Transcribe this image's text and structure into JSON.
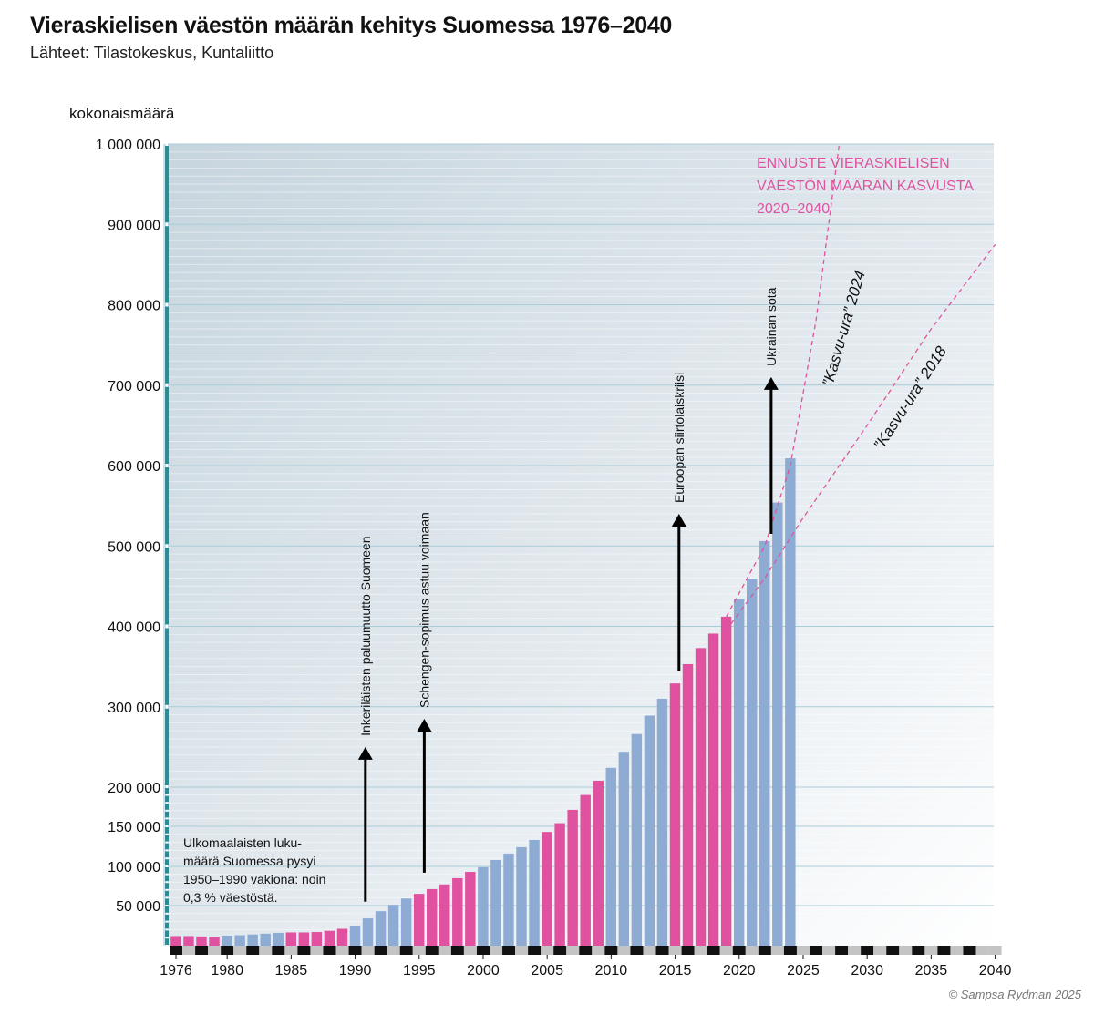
{
  "header": {
    "title": "Vieraskielisen väestön määrän kehitys Suomessa 1976–2040",
    "subtitle": "Lähteet: Tilastokeskus, Kuntaliitto"
  },
  "credit": "© Sampsa Rydman 2025",
  "colors": {
    "pink": "#e0529f",
    "blue": "#8eacd3",
    "teal": "#2a8c95",
    "grid": "#a8cdd8"
  },
  "chart_data": {
    "type": "bar",
    "ylabel": "kokonaismäärä",
    "y_ticks": [
      {
        "value": 50000,
        "label": "50 000"
      },
      {
        "value": 100000,
        "label": "100 000"
      },
      {
        "value": 150000,
        "label": "150 000"
      },
      {
        "value": 200000,
        "label": "200 000"
      },
      {
        "value": 300000,
        "label": "300 000"
      },
      {
        "value": 400000,
        "label": "400 000"
      },
      {
        "value": 500000,
        "label": "500 000"
      },
      {
        "value": 600000,
        "label": "600 000"
      },
      {
        "value": 700000,
        "label": "700 000"
      },
      {
        "value": 800000,
        "label": "800 000"
      },
      {
        "value": 900000,
        "label": "900 000"
      },
      {
        "value": 1000000,
        "label": "1 000 000"
      }
    ],
    "x_ticks": [
      {
        "value": 1976,
        "label": "1976"
      },
      {
        "value": 1980,
        "label": "1980"
      },
      {
        "value": 1985,
        "label": "1985"
      },
      {
        "value": 1990,
        "label": "1990"
      },
      {
        "value": 1995,
        "label": "1995"
      },
      {
        "value": 2000,
        "label": "2000"
      },
      {
        "value": 2005,
        "label": "2005"
      },
      {
        "value": 2010,
        "label": "2010"
      },
      {
        "value": 2015,
        "label": "2015"
      },
      {
        "value": 2020,
        "label": "2020"
      },
      {
        "value": 2025,
        "label": "2025"
      },
      {
        "value": 2030,
        "label": "2030"
      },
      {
        "value": 2035,
        "label": "2035"
      },
      {
        "value": 2040,
        "label": "2040"
      }
    ],
    "xlim": [
      1976,
      2040
    ],
    "ylim": [
      0,
      1000000
    ],
    "bars": [
      {
        "year": 1976,
        "value": 12000,
        "color": "pink"
      },
      {
        "year": 1977,
        "value": 12000,
        "color": "pink"
      },
      {
        "year": 1978,
        "value": 11500,
        "color": "pink"
      },
      {
        "year": 1979,
        "value": 11000,
        "color": "pink"
      },
      {
        "year": 1980,
        "value": 12500,
        "color": "blue"
      },
      {
        "year": 1981,
        "value": 13000,
        "color": "blue"
      },
      {
        "year": 1982,
        "value": 14000,
        "color": "blue"
      },
      {
        "year": 1983,
        "value": 15000,
        "color": "blue"
      },
      {
        "year": 1984,
        "value": 16000,
        "color": "blue"
      },
      {
        "year": 1985,
        "value": 16500,
        "color": "pink"
      },
      {
        "year": 1986,
        "value": 16500,
        "color": "pink"
      },
      {
        "year": 1987,
        "value": 17000,
        "color": "pink"
      },
      {
        "year": 1988,
        "value": 18500,
        "color": "pink"
      },
      {
        "year": 1989,
        "value": 21000,
        "color": "pink"
      },
      {
        "year": 1990,
        "value": 25000,
        "color": "blue"
      },
      {
        "year": 1991,
        "value": 34000,
        "color": "blue"
      },
      {
        "year": 1992,
        "value": 43000,
        "color": "blue"
      },
      {
        "year": 1993,
        "value": 51000,
        "color": "blue"
      },
      {
        "year": 1994,
        "value": 59000,
        "color": "blue"
      },
      {
        "year": 1995,
        "value": 65000,
        "color": "pink"
      },
      {
        "year": 1996,
        "value": 71000,
        "color": "pink"
      },
      {
        "year": 1997,
        "value": 77000,
        "color": "pink"
      },
      {
        "year": 1998,
        "value": 85000,
        "color": "pink"
      },
      {
        "year": 1999,
        "value": 93000,
        "color": "pink"
      },
      {
        "year": 2000,
        "value": 99000,
        "color": "blue"
      },
      {
        "year": 2001,
        "value": 108000,
        "color": "blue"
      },
      {
        "year": 2002,
        "value": 116000,
        "color": "blue"
      },
      {
        "year": 2003,
        "value": 124000,
        "color": "blue"
      },
      {
        "year": 2004,
        "value": 133000,
        "color": "blue"
      },
      {
        "year": 2005,
        "value": 143000,
        "color": "pink"
      },
      {
        "year": 2006,
        "value": 154000,
        "color": "pink"
      },
      {
        "year": 2007,
        "value": 171000,
        "color": "pink"
      },
      {
        "year": 2008,
        "value": 190000,
        "color": "pink"
      },
      {
        "year": 2009,
        "value": 208000,
        "color": "pink"
      },
      {
        "year": 2010,
        "value": 224000,
        "color": "blue"
      },
      {
        "year": 2011,
        "value": 244000,
        "color": "blue"
      },
      {
        "year": 2012,
        "value": 266000,
        "color": "blue"
      },
      {
        "year": 2013,
        "value": 289000,
        "color": "blue"
      },
      {
        "year": 2014,
        "value": 310000,
        "color": "blue"
      },
      {
        "year": 2015,
        "value": 329000,
        "color": "pink"
      },
      {
        "year": 2016,
        "value": 353000,
        "color": "pink"
      },
      {
        "year": 2017,
        "value": 373000,
        "color": "pink"
      },
      {
        "year": 2018,
        "value": 391000,
        "color": "pink"
      },
      {
        "year": 2019,
        "value": 412000,
        "color": "pink"
      },
      {
        "year": 2020,
        "value": 434000,
        "color": "blue"
      },
      {
        "year": 2021,
        "value": 459000,
        "color": "blue"
      },
      {
        "year": 2022,
        "value": 506000,
        "color": "blue"
      },
      {
        "year": 2023,
        "value": 554000,
        "color": "blue"
      },
      {
        "year": 2024,
        "value": 609000,
        "color": "blue"
      }
    ],
    "forecast": {
      "title_lines": [
        "ENNUSTE VIERASKIELISEN",
        "VÄESTÖN MÄÄRÄN KASVUSTA",
        "2020–2040"
      ],
      "trajectories": [
        {
          "label": "”Kasvu-ura” 2024",
          "points": [
            [
              2019,
              412000
            ],
            [
              2022,
              500000
            ],
            [
              2024,
              600000
            ],
            [
              2026,
              780000
            ],
            [
              2027.8,
              998000
            ]
          ]
        },
        {
          "label": "”Kasvu-ura” 2018",
          "points": [
            [
              2019,
              395000
            ],
            [
              2022,
              460000
            ],
            [
              2025,
              535000
            ],
            [
              2030,
              650000
            ],
            [
              2035,
              770000
            ],
            [
              2040,
              875000
            ]
          ]
        }
      ]
    },
    "events": [
      {
        "label": "Inkeriläisten paluumuutto Suomeen",
        "year": 1990.8,
        "from": 55000,
        "to": 250000
      },
      {
        "label": "Schengen-sopimus astuu voimaan",
        "year": 1995.4,
        "from": 92000,
        "to": 285000
      },
      {
        "label": "Euroopan siirtolaiskriisi",
        "year": 2015.3,
        "from": 345000,
        "to": 540000
      },
      {
        "label": "Ukrainan sota",
        "year": 2022.5,
        "from": 515000,
        "to": 710000
      }
    ],
    "annotation_lines": [
      "Ulkomaalaisten luku-",
      "määrä Suomessa pysyi",
      "1950–1990 vakiona: noin",
      "0,3 % väestöstä."
    ]
  }
}
